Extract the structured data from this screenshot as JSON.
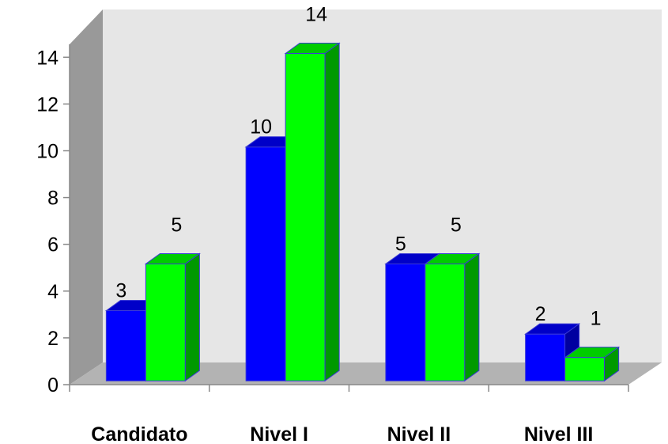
{
  "chart_data": {
    "type": "bar",
    "style": "3d-clustered",
    "categories": [
      "Candidato",
      "Nivel I",
      "Nivel II",
      "Nivel III"
    ],
    "series": [
      {
        "values": [
          3,
          10,
          5,
          2
        ],
        "color": "#0000ff",
        "side_color": "#0000a0",
        "top_color": "#0000c8"
      },
      {
        "values": [
          5,
          14,
          5,
          1
        ],
        "color": "#00ff00",
        "side_color": "#009900",
        "top_color": "#00cc00"
      }
    ],
    "yticks": [
      0,
      2,
      4,
      6,
      8,
      10,
      12,
      14
    ],
    "ylim": [
      0,
      14
    ],
    "grid": false,
    "legend": "none",
    "wall_color": "#e6e6e6",
    "floor_color": "#b3b3b3",
    "left_wall_color": "#999999"
  }
}
